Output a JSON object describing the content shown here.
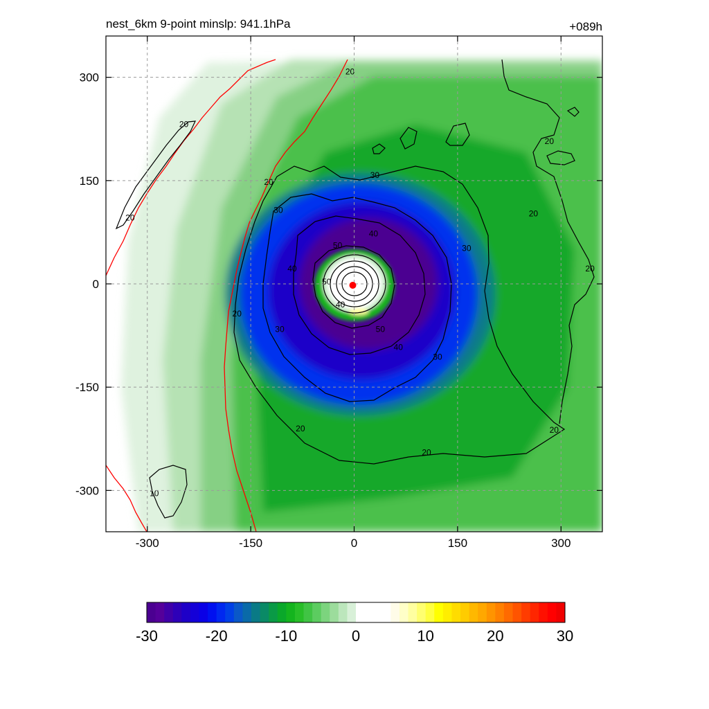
{
  "chart_data": {
    "type": "heatmap",
    "title_left": "nest_6km  9-point minslp: 941.1hPa",
    "title_right": "+089h",
    "xlim": [
      -360,
      360
    ],
    "ylim": [
      -360,
      360
    ],
    "x_ticks": [
      -300,
      -150,
      0,
      150,
      300
    ],
    "y_ticks": [
      300,
      150,
      0,
      -150,
      -300
    ],
    "x_tick_labels": [
      "-300",
      "-150",
      "0",
      "150",
      "300"
    ],
    "y_tick_labels": [
      "300",
      "150",
      "0",
      "-150",
      "-300"
    ],
    "grid": true,
    "center_marker": {
      "x": -2,
      "y": -2,
      "color": "#ff0000"
    },
    "contour_levels": [
      10,
      20,
      30,
      40,
      50
    ],
    "contour_labels": [
      {
        "text": "20",
        "x": -247,
        "y": 232
      },
      {
        "text": "20",
        "x": -325,
        "y": 96
      },
      {
        "text": "20",
        "x": -124,
        "y": 148
      },
      {
        "text": "20",
        "x": -6,
        "y": 308
      },
      {
        "text": "30",
        "x": -110,
        "y": 107
      },
      {
        "text": "30",
        "x": 30,
        "y": 158
      },
      {
        "text": "40",
        "x": 28,
        "y": 73
      },
      {
        "text": "50",
        "x": -24,
        "y": 56
      },
      {
        "text": "40",
        "x": -90,
        "y": 22
      },
      {
        "text": "50",
        "x": -40,
        "y": 3
      },
      {
        "text": "40",
        "x": -20,
        "y": -30
      },
      {
        "text": "30",
        "x": 163,
        "y": 52
      },
      {
        "text": "40",
        "x": 64,
        "y": -92
      },
      {
        "text": "50",
        "x": 38,
        "y": -66
      },
      {
        "text": "30",
        "x": 121,
        "y": -106
      },
      {
        "text": "30",
        "x": -108,
        "y": -66
      },
      {
        "text": "20",
        "x": -170,
        "y": -43
      },
      {
        "text": "20",
        "x": -78,
        "y": -210
      },
      {
        "text": "20",
        "x": 105,
        "y": -245
      },
      {
        "text": "20",
        "x": 290,
        "y": -212
      },
      {
        "text": "20",
        "x": 342,
        "y": 22
      },
      {
        "text": "20",
        "x": 260,
        "y": 102
      },
      {
        "text": "20",
        "x": 283,
        "y": 207
      },
      {
        "text": "10",
        "x": -290,
        "y": -304
      }
    ],
    "colorbar": {
      "min": -30,
      "max": 30,
      "tick_values": [
        -30,
        -20,
        -10,
        0,
        10,
        20,
        30
      ],
      "tick_labels": [
        "-30",
        "-20",
        "-10",
        "0",
        "10",
        "20",
        "30"
      ],
      "colors": [
        "#4b0091",
        "#55009a",
        "#4000a8",
        "#2e00b8",
        "#1e00c8",
        "#1400d8",
        "#0a00e6",
        "#0010f0",
        "#0028f0",
        "#0040e6",
        "#0a58c8",
        "#0a6aa8",
        "#0a7a86",
        "#0a8a66",
        "#0a9a46",
        "#0aa82a",
        "#14b41e",
        "#28be28",
        "#40c444",
        "#5ccc60",
        "#7cd47e",
        "#9cdc9c",
        "#bce6bc",
        "#d8f0d8",
        "#ffffff",
        "#ffffff",
        "#ffffff",
        "#ffffff",
        "#fffce8",
        "#ffffc8",
        "#ffffa0",
        "#ffff70",
        "#ffff40",
        "#ffff00",
        "#ffee00",
        "#ffdc00",
        "#ffcc00",
        "#ffb800",
        "#ffa800",
        "#ff9400",
        "#ff8000",
        "#ff6a00",
        "#ff5400",
        "#ff3c00",
        "#ff2600",
        "#ff1000",
        "#ff0000",
        "#f00000"
      ]
    }
  }
}
